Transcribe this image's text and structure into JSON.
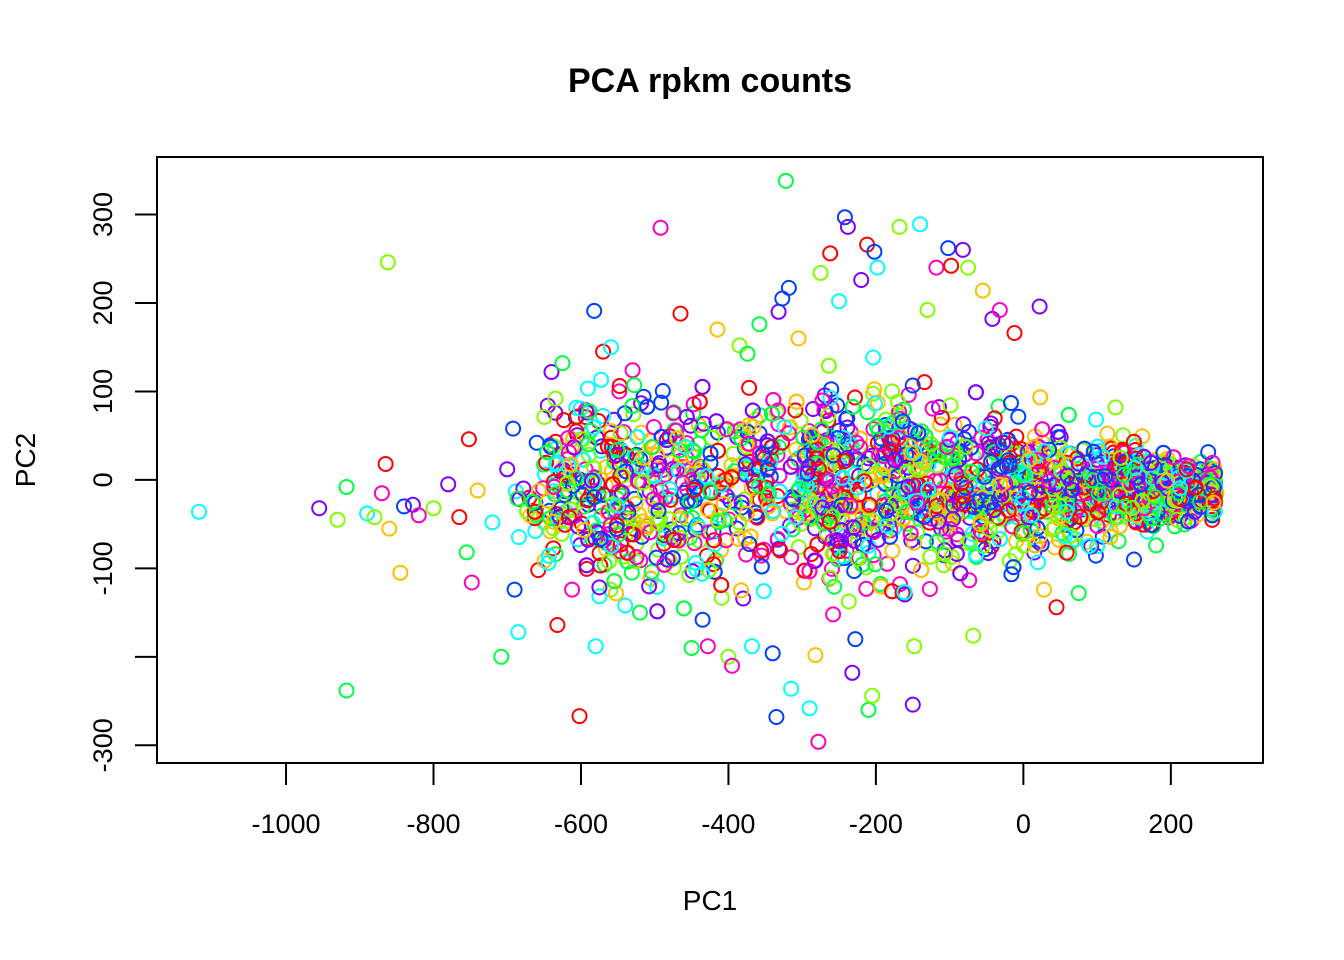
{
  "chart_data": {
    "type": "scatter",
    "title": "PCA rpkm counts",
    "xlabel": "PC1",
    "ylabel": "PC2",
    "xlim": [
      -1175,
      325
    ],
    "ylim": [
      -320,
      365
    ],
    "x_ticks": [
      -1000,
      -800,
      -600,
      -400,
      -200,
      0,
      200
    ],
    "y_ticks": [
      -300,
      -200,
      -100,
      0,
      100,
      200,
      300
    ],
    "x_tick_labels": [
      "-1000",
      "-800",
      "-600",
      "-400",
      "-200",
      "0",
      "200"
    ],
    "y_tick_labels": [
      "-300",
      "",
      "-100",
      "0",
      "100",
      "200",
      "300"
    ],
    "grid": false,
    "legend": "none",
    "palette": [
      "#FF0000",
      "#FFBF00",
      "#80FF00",
      "#00FF40",
      "#00FFFF",
      "#0040FF",
      "#8000FF",
      "#FF00BF"
    ],
    "points": [
      {
        "x": -1118,
        "y": -36,
        "c": 4
      },
      {
        "x": -955,
        "y": -32,
        "c": 6
      },
      {
        "x": -930,
        "y": -45,
        "c": 2
      },
      {
        "x": -918,
        "y": -8,
        "c": 3
      },
      {
        "x": -918,
        "y": -238,
        "c": 3
      },
      {
        "x": -890,
        "y": -38,
        "c": 4
      },
      {
        "x": -880,
        "y": -42,
        "c": 2
      },
      {
        "x": -870,
        "y": -15,
        "c": 7
      },
      {
        "x": -865,
        "y": 18,
        "c": 0
      },
      {
        "x": -862,
        "y": 246,
        "c": 2
      },
      {
        "x": -860,
        "y": -55,
        "c": 1
      },
      {
        "x": -845,
        "y": -105,
        "c": 1
      },
      {
        "x": -840,
        "y": -30,
        "c": 5
      },
      {
        "x": -828,
        "y": -28,
        "c": 6
      },
      {
        "x": -820,
        "y": -40,
        "c": 7
      },
      {
        "x": -800,
        "y": -32,
        "c": 2
      },
      {
        "x": -780,
        "y": -5,
        "c": 6
      },
      {
        "x": -765,
        "y": -42,
        "c": 0
      },
      {
        "x": -755,
        "y": -82,
        "c": 3
      },
      {
        "x": -752,
        "y": 46,
        "c": 0
      },
      {
        "x": -748,
        "y": -116,
        "c": 7
      },
      {
        "x": -740,
        "y": -12,
        "c": 1
      },
      {
        "x": -720,
        "y": -48,
        "c": 4
      },
      {
        "x": -708,
        "y": -200,
        "c": 3
      },
      {
        "x": -700,
        "y": 12,
        "c": 6
      },
      {
        "x": -692,
        "y": 58,
        "c": 5
      },
      {
        "x": -690,
        "y": -124,
        "c": 5
      },
      {
        "x": -685,
        "y": -172,
        "c": 4
      },
      {
        "x": -670,
        "y": -20,
        "c": 0
      },
      {
        "x": -660,
        "y": 42,
        "c": 5
      },
      {
        "x": -658,
        "y": -102,
        "c": 0
      },
      {
        "x": -650,
        "y": -48,
        "c": 2
      },
      {
        "x": -645,
        "y": 84,
        "c": 6
      },
      {
        "x": -640,
        "y": 122,
        "c": 6
      },
      {
        "x": -635,
        "y": 76,
        "c": 6
      },
      {
        "x": -632,
        "y": -164,
        "c": 0
      },
      {
        "x": -625,
        "y": 132,
        "c": 3
      },
      {
        "x": -620,
        "y": -36,
        "c": 4
      },
      {
        "x": -612,
        "y": -124,
        "c": 7
      },
      {
        "x": -600,
        "y": 46,
        "c": 4
      },
      {
        "x": -602,
        "y": -267,
        "c": 0
      },
      {
        "x": -590,
        "y": -28,
        "c": 5
      },
      {
        "x": -582,
        "y": 191,
        "c": 5
      },
      {
        "x": -580,
        "y": -188,
        "c": 4
      },
      {
        "x": -575,
        "y": -60,
        "c": 7
      },
      {
        "x": -570,
        "y": 145,
        "c": 0
      },
      {
        "x": -568,
        "y": -96,
        "c": 3
      },
      {
        "x": -560,
        "y": -124,
        "c": 2
      },
      {
        "x": -555,
        "y": 68,
        "c": 6
      },
      {
        "x": -548,
        "y": 100,
        "c": 7
      },
      {
        "x": -540,
        "y": -142,
        "c": 4
      },
      {
        "x": -530,
        "y": 124,
        "c": 7
      },
      {
        "x": -525,
        "y": -72,
        "c": 2
      },
      {
        "x": -520,
        "y": -150,
        "c": 3
      },
      {
        "x": -515,
        "y": 94,
        "c": 5
      },
      {
        "x": -505,
        "y": -112,
        "c": 4
      },
      {
        "x": -492,
        "y": 285,
        "c": 7
      },
      {
        "x": -470,
        "y": 12,
        "c": 6
      },
      {
        "x": -465,
        "y": 188,
        "c": 0
      },
      {
        "x": -450,
        "y": -190,
        "c": 3
      },
      {
        "x": -440,
        "y": 62,
        "c": 1
      },
      {
        "x": -435,
        "y": -158,
        "c": 5
      },
      {
        "x": -428,
        "y": -188,
        "c": 7
      },
      {
        "x": -415,
        "y": 170,
        "c": 1
      },
      {
        "x": -400,
        "y": -200,
        "c": 2
      },
      {
        "x": -395,
        "y": -210,
        "c": 7
      },
      {
        "x": -385,
        "y": 152,
        "c": 2
      },
      {
        "x": -380,
        "y": -134,
        "c": 6
      },
      {
        "x": -372,
        "y": 104,
        "c": 0
      },
      {
        "x": -368,
        "y": -188,
        "c": 4
      },
      {
        "x": -358,
        "y": 176,
        "c": 3
      },
      {
        "x": -340,
        "y": -196,
        "c": 5
      },
      {
        "x": -335,
        "y": -268,
        "c": 5
      },
      {
        "x": -332,
        "y": 190,
        "c": 6
      },
      {
        "x": -327,
        "y": 205,
        "c": 5
      },
      {
        "x": -322,
        "y": 338,
        "c": 3
      },
      {
        "x": -318,
        "y": 217,
        "c": 5
      },
      {
        "x": -315,
        "y": -236,
        "c": 4
      },
      {
        "x": -305,
        "y": 160,
        "c": 1
      },
      {
        "x": -290,
        "y": -258,
        "c": 4
      },
      {
        "x": -282,
        "y": -198,
        "c": 1
      },
      {
        "x": -278,
        "y": -296,
        "c": 7
      },
      {
        "x": -275,
        "y": 234,
        "c": 2
      },
      {
        "x": -262,
        "y": 256,
        "c": 0
      },
      {
        "x": -258,
        "y": -152,
        "c": 7
      },
      {
        "x": -250,
        "y": 202,
        "c": 4
      },
      {
        "x": -242,
        "y": 297,
        "c": 5
      },
      {
        "x": -238,
        "y": 286,
        "c": 6
      },
      {
        "x": -232,
        "y": -218,
        "c": 6
      },
      {
        "x": -228,
        "y": -180,
        "c": 5
      },
      {
        "x": -220,
        "y": 226,
        "c": 6
      },
      {
        "x": -212,
        "y": 266,
        "c": 0
      },
      {
        "x": -210,
        "y": -260,
        "c": 3
      },
      {
        "x": -205,
        "y": -244,
        "c": 2
      },
      {
        "x": -202,
        "y": 258,
        "c": 5
      },
      {
        "x": -198,
        "y": 240,
        "c": 4
      },
      {
        "x": -168,
        "y": 286,
        "c": 2
      },
      {
        "x": -150,
        "y": -254,
        "c": 6
      },
      {
        "x": -148,
        "y": -188,
        "c": 2
      },
      {
        "x": -140,
        "y": 289,
        "c": 4
      },
      {
        "x": -130,
        "y": 192,
        "c": 2
      },
      {
        "x": -118,
        "y": 240,
        "c": 7
      },
      {
        "x": -102,
        "y": 262,
        "c": 5
      },
      {
        "x": -98,
        "y": 242,
        "c": 0
      },
      {
        "x": -82,
        "y": 260,
        "c": 6
      },
      {
        "x": -75,
        "y": 240,
        "c": 2
      },
      {
        "x": -68,
        "y": -176,
        "c": 2
      },
      {
        "x": -55,
        "y": 214,
        "c": 1
      },
      {
        "x": -42,
        "y": 182,
        "c": 6
      },
      {
        "x": -32,
        "y": 192,
        "c": 7
      },
      {
        "x": -12,
        "y": 166,
        "c": 0
      },
      {
        "x": 22,
        "y": 196,
        "c": 6
      },
      {
        "x": 28,
        "y": -124,
        "c": 1
      },
      {
        "x": 45,
        "y": -144,
        "c": 0
      },
      {
        "x": 75,
        "y": -128,
        "c": 3
      },
      {
        "x": 125,
        "y": 82,
        "c": 2
      },
      {
        "x": 150,
        "y": -90,
        "c": 5
      },
      {
        "x": 180,
        "y": -74,
        "c": 3
      },
      {
        "x": 200,
        "y": -40,
        "c": 0
      },
      {
        "x": 215,
        "y": -20,
        "c": 4
      },
      {
        "x": 230,
        "y": -8,
        "c": 1
      },
      {
        "x": 245,
        "y": -18,
        "c": 6
      },
      {
        "x": 255,
        "y": -12,
        "c": 2
      },
      {
        "x": 262,
        "y": -15,
        "c": 1
      }
    ]
  }
}
